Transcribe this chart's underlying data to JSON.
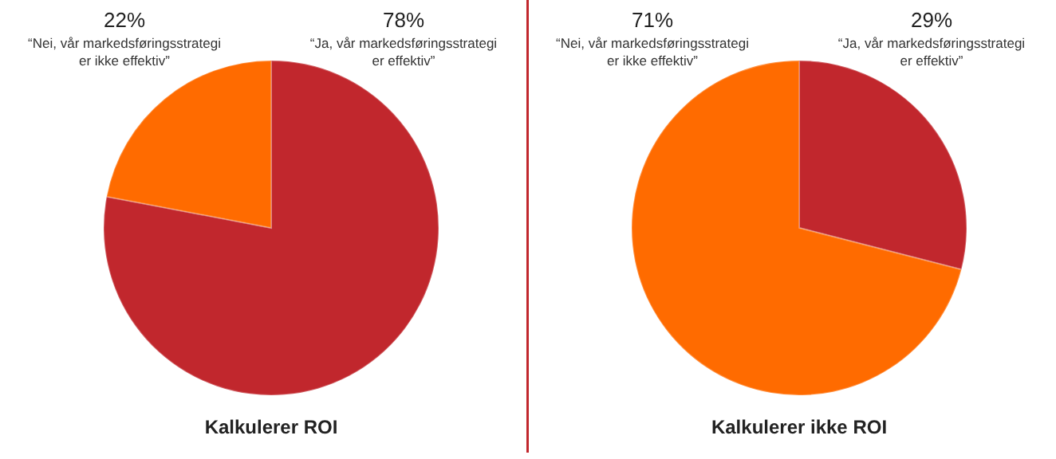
{
  "chart_data": [
    {
      "type": "pie",
      "title": "Kalkulerer ROI",
      "categories": [
        "“Ja, vår markedsføringsstrategi er effektiv”",
        "“Nei, vår markedsføringsstrategi er ikke effektiv”"
      ],
      "values": [
        78,
        22
      ],
      "value_labels": [
        "78%",
        "22%"
      ],
      "colors": [
        "#c1272d",
        "#ff6b00"
      ]
    },
    {
      "type": "pie",
      "title": "Kalkulerer ikke ROI",
      "categories": [
        "“Ja, vår markedsføringsstrategi er effektiv”",
        "“Nei, vår markedsføringsstrategi er ikke effektiv”"
      ],
      "values": [
        29,
        71
      ],
      "value_labels": [
        "29%",
        "71%"
      ],
      "colors": [
        "#c1272d",
        "#ff6b00"
      ]
    }
  ]
}
